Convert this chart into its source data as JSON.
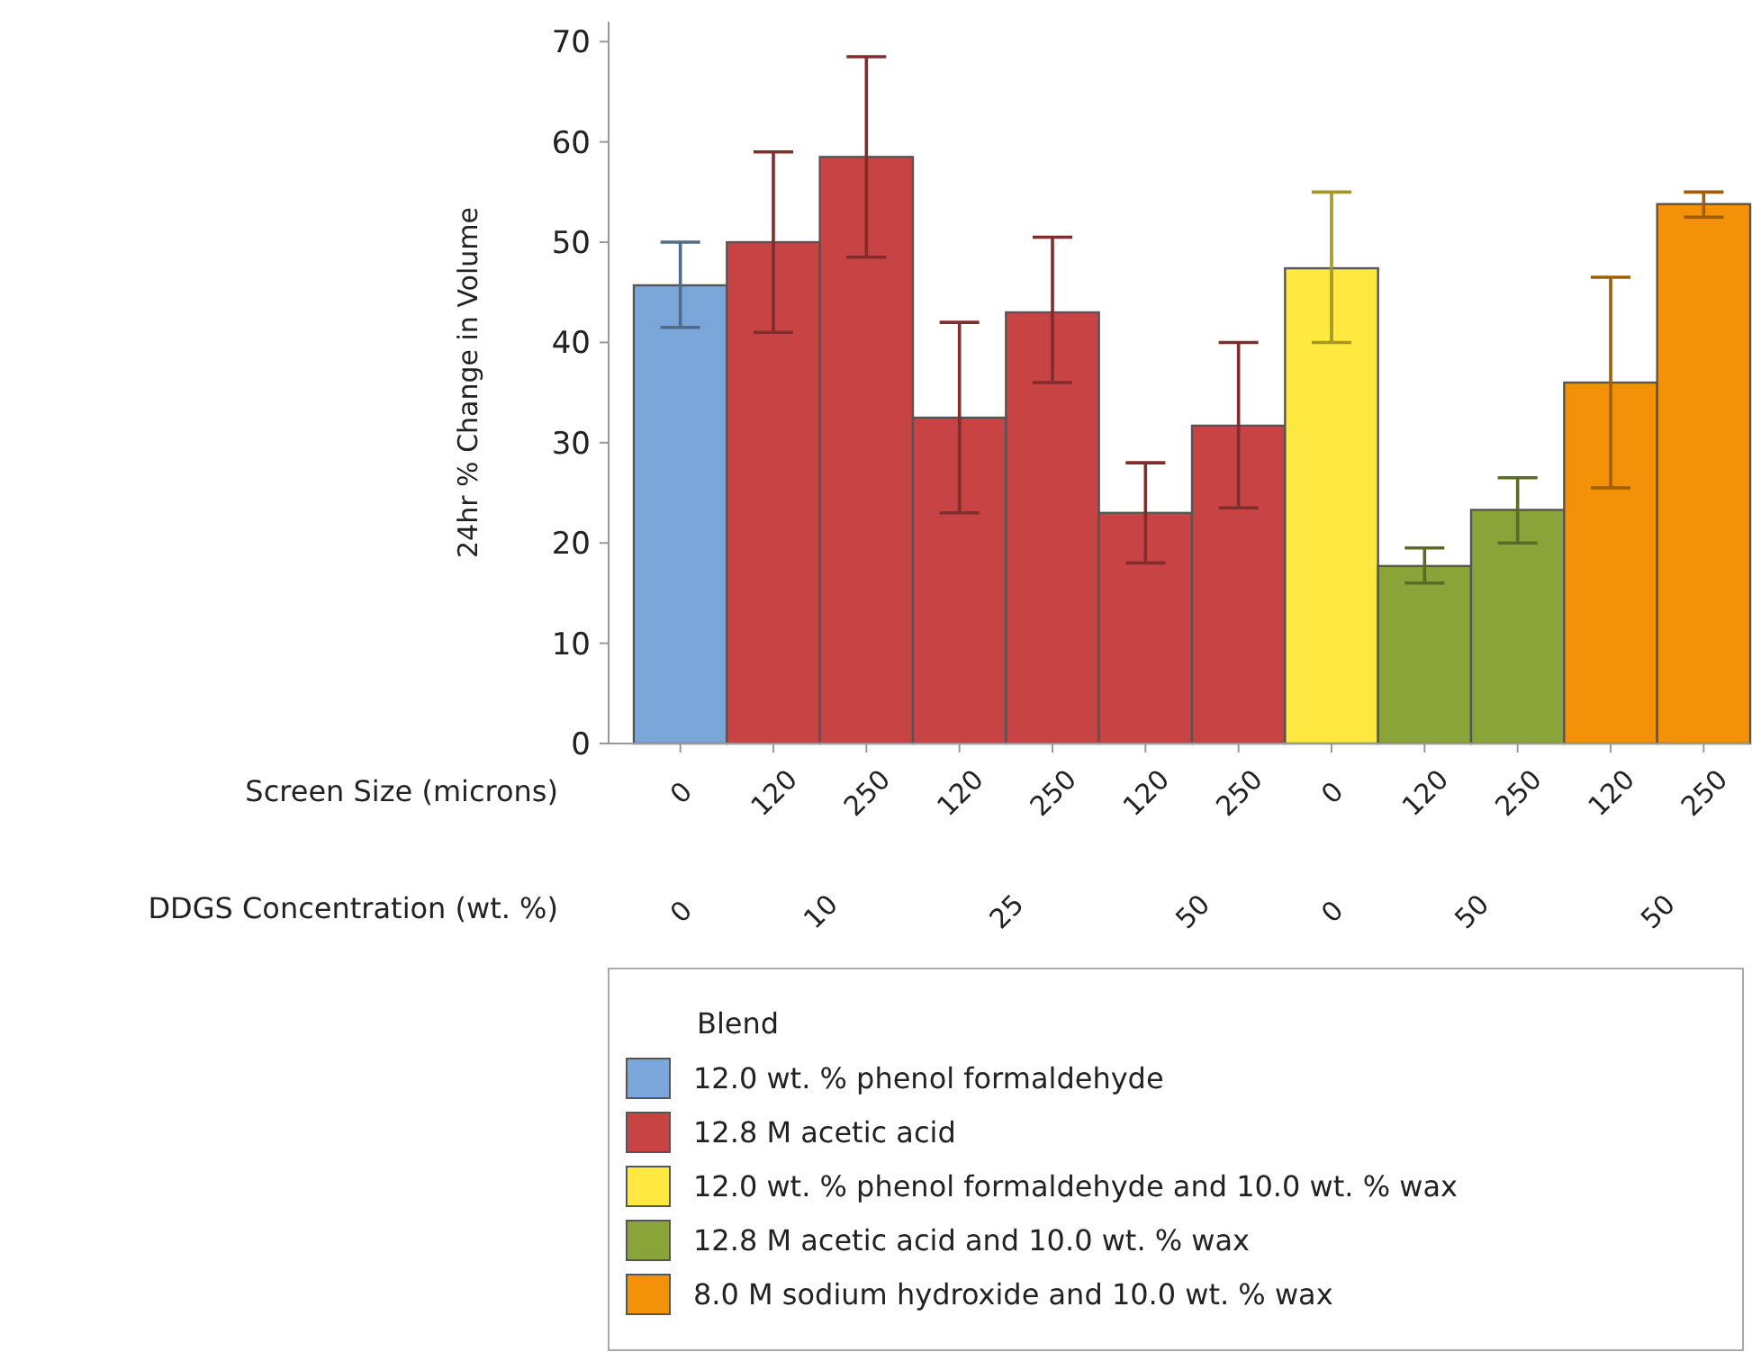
{
  "chart_data": {
    "type": "bar",
    "ylabel": "24hr % Change in Volume",
    "xlabel": "Screen Size (microns)",
    "legend_title": "Blend",
    "legend": "bottom",
    "categories": [
      "0",
      "120",
      "250",
      "120",
      "250",
      "120",
      "250",
      "0",
      "120",
      "250",
      "120",
      "250"
    ],
    "ylim": [
      0,
      72
    ],
    "yticks": [
      0,
      10,
      20,
      30,
      40,
      50,
      60,
      70
    ],
    "annotations": [
      "DDGS Concentration (wt. %)",
      "0",
      "10",
      "25",
      "50",
      "0",
      "50",
      "50"
    ],
    "series": [
      {
        "name": "12.0 wt. % phenol formaldehyde",
        "color": "#7ba6d9",
        "values": [
          45.7,
          null,
          null,
          null,
          null,
          null,
          null,
          null,
          null,
          null,
          null,
          null
        ],
        "errors": [
          [
            41.5,
            50
          ],
          null,
          null,
          null,
          null,
          null,
          null,
          null,
          null,
          null,
          null,
          null
        ]
      },
      {
        "name": "12.8 M acetic acid",
        "color": "#c84343",
        "values": [
          null,
          50,
          58.5,
          32.5,
          43,
          23,
          31.7,
          null,
          null,
          null,
          null,
          null
        ],
        "errors": [
          null,
          [
            41,
            59
          ],
          [
            48.5,
            68.5
          ],
          [
            23,
            42
          ],
          [
            36,
            50.5
          ],
          [
            18,
            28
          ],
          [
            23.5,
            40
          ],
          null,
          null,
          null,
          null,
          null
        ]
      },
      {
        "name": "12.0 wt. % phenol formaldehyde and 10.0 wt. % wax",
        "color": "#ffe840",
        "values": [
          null,
          null,
          null,
          null,
          null,
          null,
          null,
          47.4,
          null,
          null,
          null,
          null
        ],
        "errors": [
          null,
          null,
          null,
          null,
          null,
          null,
          null,
          [
            40,
            55
          ],
          null,
          null,
          null,
          null
        ]
      },
      {
        "name": "12.8 M acetic acid and 10.0 wt. % wax",
        "color": "#8aa43a",
        "values": [
          null,
          null,
          null,
          null,
          null,
          null,
          null,
          null,
          17.7,
          23.3,
          null,
          null
        ],
        "errors": [
          null,
          null,
          null,
          null,
          null,
          null,
          null,
          null,
          [
            16,
            19.5
          ],
          [
            20,
            26.5
          ],
          null,
          null
        ]
      },
      {
        "name": "8.0 M sodium hydroxide and 10.0 wt. % wax",
        "color": "#f39208",
        "values": [
          null,
          null,
          null,
          null,
          null,
          null,
          null,
          null,
          null,
          null,
          36,
          53.8
        ],
        "errors": [
          null,
          null,
          null,
          null,
          null,
          null,
          null,
          null,
          null,
          null,
          [
            25.5,
            46.5
          ],
          [
            52.5,
            55
          ]
        ]
      }
    ]
  }
}
